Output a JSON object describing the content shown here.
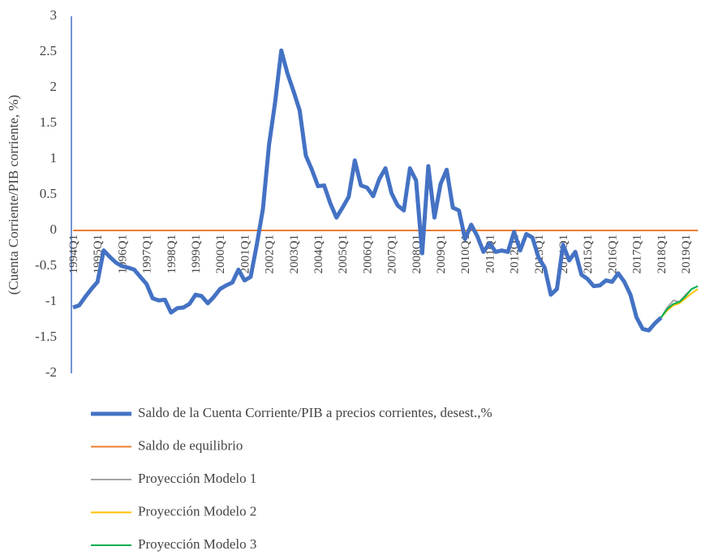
{
  "chart_data": {
    "type": "line",
    "y_label": "(Cuenta Corriente/PIB corriente, %)",
    "categories": [
      "1994Q1",
      null,
      null,
      null,
      "1995Q1",
      null,
      null,
      null,
      "1996Q1",
      null,
      null,
      null,
      "1997Q1",
      null,
      null,
      null,
      "1998Q1",
      null,
      null,
      null,
      "1999Q1",
      null,
      null,
      null,
      "2000Q1",
      null,
      null,
      null,
      "2001Q1",
      null,
      null,
      null,
      "2002Q1",
      null,
      null,
      null,
      "2003Q1",
      null,
      null,
      null,
      "2004Q1",
      null,
      null,
      null,
      "2005Q1",
      null,
      null,
      null,
      "2006Q1",
      null,
      null,
      null,
      "2007Q1",
      null,
      null,
      null,
      "2008Q1",
      null,
      null,
      null,
      "2009Q1",
      null,
      null,
      null,
      "2010Q1",
      null,
      null,
      null,
      "2011Q1",
      null,
      null,
      null,
      "2012Q1",
      null,
      null,
      null,
      "2013Q1",
      null,
      null,
      null,
      "2014Q1",
      null,
      null,
      null,
      "2015Q1",
      null,
      null,
      null,
      "2016Q1",
      null,
      null,
      null,
      "2017Q1",
      null,
      null,
      null,
      "2018Q1",
      null,
      null,
      null,
      "2019Q1",
      null,
      null
    ],
    "series": [
      {
        "name": "Saldo de la Cuenta Corriente/PIB a precios corrientes, desest.,%",
        "color": "#4472c4",
        "values": [
          -1.08,
          -1.05,
          -0.93,
          -0.82,
          -0.72,
          -0.28,
          -0.37,
          -0.45,
          -0.5,
          -0.52,
          -0.55,
          -0.65,
          -0.75,
          -0.95,
          -0.98,
          -0.97,
          -1.15,
          -1.09,
          -1.08,
          -1.03,
          -0.9,
          -0.92,
          -1.02,
          -0.93,
          -0.82,
          -0.77,
          -0.73,
          -0.55,
          -0.7,
          -0.65,
          -0.2,
          0.3,
          1.2,
          1.8,
          2.52,
          2.2,
          1.95,
          1.68,
          1.05,
          0.85,
          0.62,
          0.63,
          0.38,
          0.18,
          0.32,
          0.47,
          0.98,
          0.63,
          0.6,
          0.48,
          0.72,
          0.87,
          0.52,
          0.35,
          0.28,
          0.87,
          0.7,
          -0.32,
          0.9,
          0.18,
          0.65,
          0.85,
          0.32,
          0.28,
          -0.12,
          0.08,
          -0.08,
          -0.3,
          -0.18,
          -0.3,
          -0.28,
          -0.3,
          -0.02,
          -0.28,
          -0.05,
          -0.1,
          -0.38,
          -0.52,
          -0.9,
          -0.82,
          -0.2,
          -0.42,
          -0.3,
          -0.62,
          -0.68,
          -0.78,
          -0.77,
          -0.7,
          -0.72,
          -0.6,
          -0.72,
          -0.9,
          -1.22,
          -1.38,
          -1.4,
          -1.3,
          -1.22,
          null,
          null,
          null,
          null,
          null,
          null
        ]
      },
      {
        "name": "Saldo de equilibrio",
        "color": "#ed7d31",
        "values": [
          0,
          0,
          0,
          0,
          0,
          0,
          0,
          0,
          0,
          0,
          0,
          0,
          0,
          0,
          0,
          0,
          0,
          0,
          0,
          0,
          0,
          0,
          0,
          0,
          0,
          0,
          0,
          0,
          0,
          0,
          0,
          0,
          0,
          0,
          0,
          0,
          0,
          0,
          0,
          0,
          0,
          0,
          0,
          0,
          0,
          0,
          0,
          0,
          0,
          0,
          0,
          0,
          0,
          0,
          0,
          0,
          0,
          0,
          0,
          0,
          0,
          0,
          0,
          0,
          0,
          0,
          0,
          0,
          0,
          0,
          0,
          0,
          0,
          0,
          0,
          0,
          0,
          0,
          0,
          0,
          0,
          0,
          0,
          0,
          0,
          0,
          0,
          0,
          0,
          0,
          0,
          0,
          0,
          0,
          0,
          0,
          0,
          0,
          0,
          0,
          0,
          0,
          0
        ]
      },
      {
        "name": "Proyección Modelo 1",
        "color": "#a5a5a5",
        "values": [
          null,
          null,
          null,
          null,
          null,
          null,
          null,
          null,
          null,
          null,
          null,
          null,
          null,
          null,
          null,
          null,
          null,
          null,
          null,
          null,
          null,
          null,
          null,
          null,
          null,
          null,
          null,
          null,
          null,
          null,
          null,
          null,
          null,
          null,
          null,
          null,
          null,
          null,
          null,
          null,
          null,
          null,
          null,
          null,
          null,
          null,
          null,
          null,
          null,
          null,
          null,
          null,
          null,
          null,
          null,
          null,
          null,
          null,
          null,
          null,
          null,
          null,
          null,
          null,
          null,
          null,
          null,
          null,
          null,
          null,
          null,
          null,
          null,
          null,
          null,
          null,
          null,
          null,
          null,
          null,
          null,
          null,
          null,
          null,
          null,
          null,
          null,
          null,
          null,
          null,
          null,
          null,
          null,
          null,
          null,
          null,
          -1.22,
          -1.08,
          -0.98,
          -1.0,
          -0.9,
          -0.82,
          -0.78
        ]
      },
      {
        "name": "Proyección Modelo 2",
        "color": "#ffc000",
        "values": [
          null,
          null,
          null,
          null,
          null,
          null,
          null,
          null,
          null,
          null,
          null,
          null,
          null,
          null,
          null,
          null,
          null,
          null,
          null,
          null,
          null,
          null,
          null,
          null,
          null,
          null,
          null,
          null,
          null,
          null,
          null,
          null,
          null,
          null,
          null,
          null,
          null,
          null,
          null,
          null,
          null,
          null,
          null,
          null,
          null,
          null,
          null,
          null,
          null,
          null,
          null,
          null,
          null,
          null,
          null,
          null,
          null,
          null,
          null,
          null,
          null,
          null,
          null,
          null,
          null,
          null,
          null,
          null,
          null,
          null,
          null,
          null,
          null,
          null,
          null,
          null,
          null,
          null,
          null,
          null,
          null,
          null,
          null,
          null,
          null,
          null,
          null,
          null,
          null,
          null,
          null,
          null,
          null,
          null,
          null,
          null,
          -1.22,
          -1.12,
          -1.05,
          -1.02,
          -0.95,
          -0.88,
          -0.82
        ]
      },
      {
        "name": "Proyección Modelo 3",
        "color": "#00b050",
        "values": [
          null,
          null,
          null,
          null,
          null,
          null,
          null,
          null,
          null,
          null,
          null,
          null,
          null,
          null,
          null,
          null,
          null,
          null,
          null,
          null,
          null,
          null,
          null,
          null,
          null,
          null,
          null,
          null,
          null,
          null,
          null,
          null,
          null,
          null,
          null,
          null,
          null,
          null,
          null,
          null,
          null,
          null,
          null,
          null,
          null,
          null,
          null,
          null,
          null,
          null,
          null,
          null,
          null,
          null,
          null,
          null,
          null,
          null,
          null,
          null,
          null,
          null,
          null,
          null,
          null,
          null,
          null,
          null,
          null,
          null,
          null,
          null,
          null,
          null,
          null,
          null,
          null,
          null,
          null,
          null,
          null,
          null,
          null,
          null,
          null,
          null,
          null,
          null,
          null,
          null,
          null,
          null,
          null,
          null,
          null,
          null,
          -1.22,
          -1.1,
          -1.03,
          -1.0,
          -0.92,
          -0.82,
          -0.78
        ]
      }
    ],
    "ylim": [
      -2,
      3
    ],
    "yticks": [
      3,
      2.5,
      2,
      1.5,
      1,
      0.5,
      0,
      -0.5,
      -1,
      -1.5,
      -2
    ]
  }
}
